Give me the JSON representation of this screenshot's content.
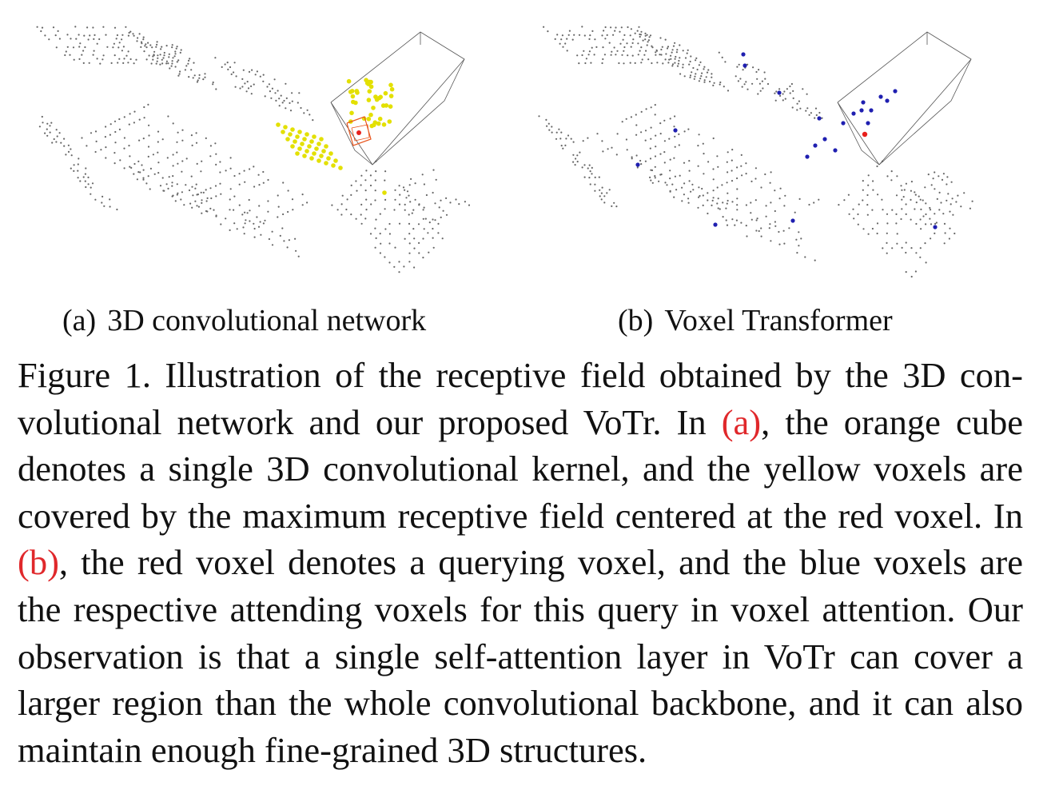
{
  "figure": {
    "panels": [
      {
        "id": "a",
        "tag": "(a)",
        "title": "3D convolutional network",
        "legend_colors": {
          "points": "#666666",
          "receptive_field": "#e3e000",
          "kernel": "#e8541c",
          "center": "#e8201c"
        }
      },
      {
        "id": "b",
        "tag": "(b)",
        "title": "Voxel Transformer",
        "legend_colors": {
          "points": "#666666",
          "attending": "#1f1fb0",
          "query": "#e8201c"
        }
      }
    ],
    "caption": {
      "label": "Figure 1.",
      "text_1": " Illustration of the receptive field obtained by the 3D con­volutional network and our proposed VoTr. In ",
      "ref_a": "(a)",
      "text_2": ", the orange cube denotes a single 3D convolutional kernel, and the yellow voxels are covered by the maximum receptive field centered at the red voxel. In ",
      "ref_b": "(b)",
      "text_3": ", the red voxel denotes a querying voxel, and the blue voxels are the respective attending voxels for this query in voxel attention. Our observation is that a single self-attention layer in VoTr can cover a larger region than the whole convolutional back­bone, and it can also maintain enough fine-grained 3D structures."
    }
  }
}
